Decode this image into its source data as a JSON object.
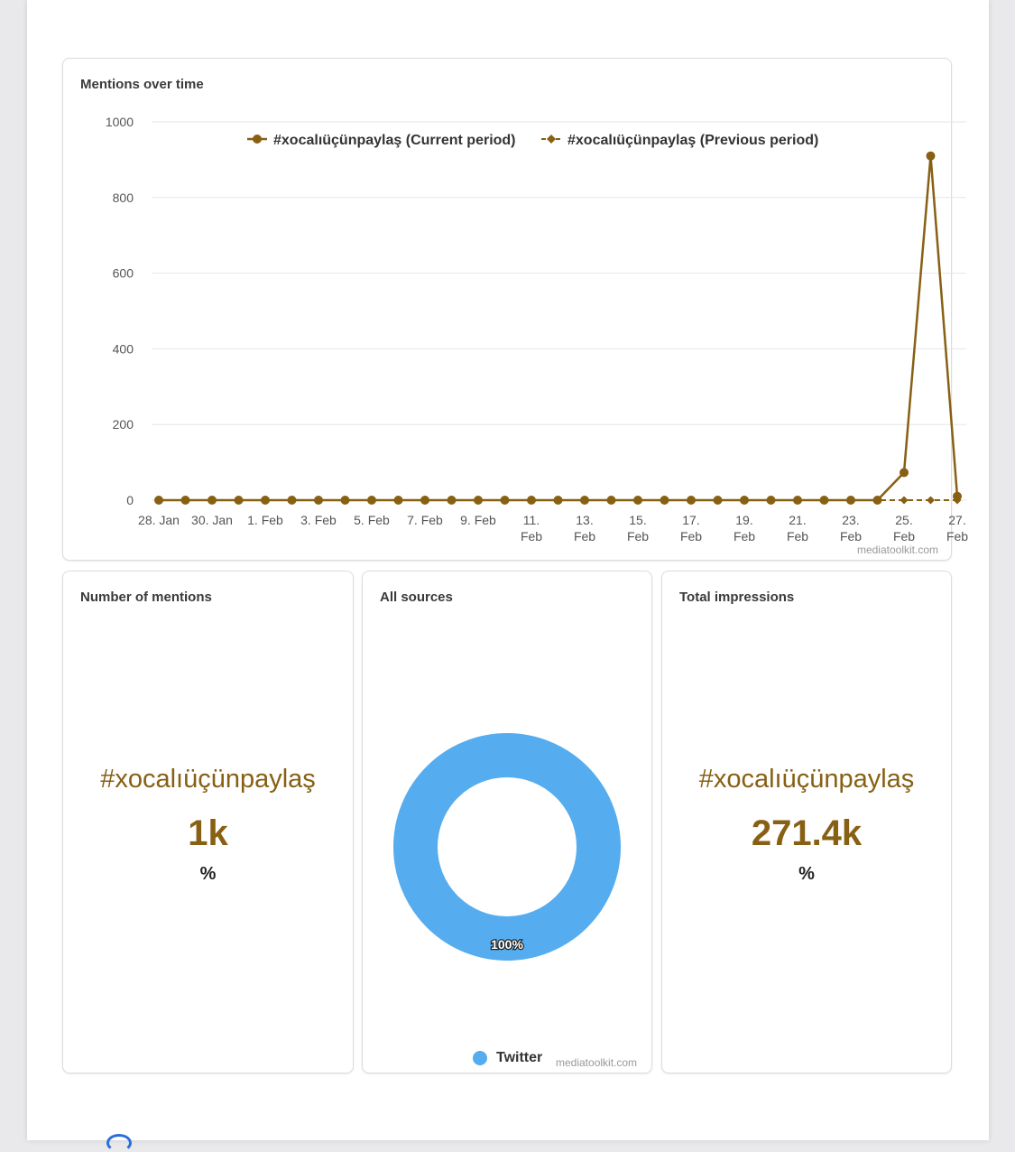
{
  "colors": {
    "series": "#876013",
    "twitter": "#55acee",
    "grid": "#e6e6e6"
  },
  "mentions_chart": {
    "title": "Mentions over time",
    "watermark": "mediatoolkit.com",
    "chart_data": {
      "type": "line",
      "title": "Mentions over time",
      "xlabel": "",
      "ylabel": "",
      "ylim": [
        0,
        1000
      ],
      "y_ticks": [
        "0",
        "200",
        "400",
        "600",
        "800",
        "1000"
      ],
      "grid": true,
      "legend_position": "top",
      "x": [
        "28 Jan",
        "29 Jan",
        "30 Jan",
        "31 Jan",
        "1 Feb",
        "2 Feb",
        "3 Feb",
        "4 Feb",
        "5 Feb",
        "6 Feb",
        "7 Feb",
        "8 Feb",
        "9 Feb",
        "10 Feb",
        "11 Feb",
        "12 Feb",
        "13 Feb",
        "14 Feb",
        "15 Feb",
        "16 Feb",
        "17 Feb",
        "18 Feb",
        "19 Feb",
        "20 Feb",
        "21 Feb",
        "22 Feb",
        "23 Feb",
        "24 Feb",
        "25 Feb",
        "26 Feb",
        "27 Feb"
      ],
      "x_tick_labels": [
        {
          "l1": "28. Jan",
          "l2": ""
        },
        {
          "l1": "30. Jan",
          "l2": ""
        },
        {
          "l1": "1. Feb",
          "l2": ""
        },
        {
          "l1": "3. Feb",
          "l2": ""
        },
        {
          "l1": "5. Feb",
          "l2": ""
        },
        {
          "l1": "7. Feb",
          "l2": ""
        },
        {
          "l1": "9. Feb",
          "l2": ""
        },
        {
          "l1": "11.",
          "l2": "Feb"
        },
        {
          "l1": "13.",
          "l2": "Feb"
        },
        {
          "l1": "15.",
          "l2": "Feb"
        },
        {
          "l1": "17.",
          "l2": "Feb"
        },
        {
          "l1": "19.",
          "l2": "Feb"
        },
        {
          "l1": "21.",
          "l2": "Feb"
        },
        {
          "l1": "23.",
          "l2": "Feb"
        },
        {
          "l1": "25.",
          "l2": "Feb"
        },
        {
          "l1": "27.",
          "l2": "Feb"
        }
      ],
      "series": [
        {
          "name": "#xocalıüçünpaylaş (Current period)",
          "marker": "circle",
          "values": [
            0,
            0,
            0,
            0,
            0,
            0,
            0,
            0,
            0,
            0,
            0,
            0,
            0,
            0,
            0,
            0,
            0,
            0,
            0,
            0,
            0,
            0,
            0,
            0,
            0,
            0,
            0,
            0,
            73,
            910,
            10
          ]
        },
        {
          "name": "#xocalıüçünpaylaş (Previous period)",
          "marker": "diamond",
          "values": [
            0,
            0,
            0,
            0,
            0,
            0,
            0,
            0,
            0,
            0,
            0,
            0,
            0,
            0,
            0,
            0,
            0,
            0,
            0,
            0,
            0,
            0,
            0,
            0,
            0,
            0,
            0,
            0,
            0,
            0,
            0
          ]
        }
      ]
    }
  },
  "mentions_card": {
    "title": "Number of mentions",
    "hashtag": "#xocalıüçünpaylaş",
    "value": "1k",
    "percent": "%"
  },
  "sources_card": {
    "title": "All sources",
    "chart_data": {
      "type": "pie",
      "slices": [
        {
          "name": "Twitter",
          "value": 100,
          "label": "100%"
        }
      ]
    },
    "legend_label": "Twitter",
    "watermark": "mediatoolkit.com"
  },
  "impressions_card": {
    "title": "Total impressions",
    "hashtag": "#xocalıüçünpaylaş",
    "value": "271.4k",
    "percent": "%"
  }
}
